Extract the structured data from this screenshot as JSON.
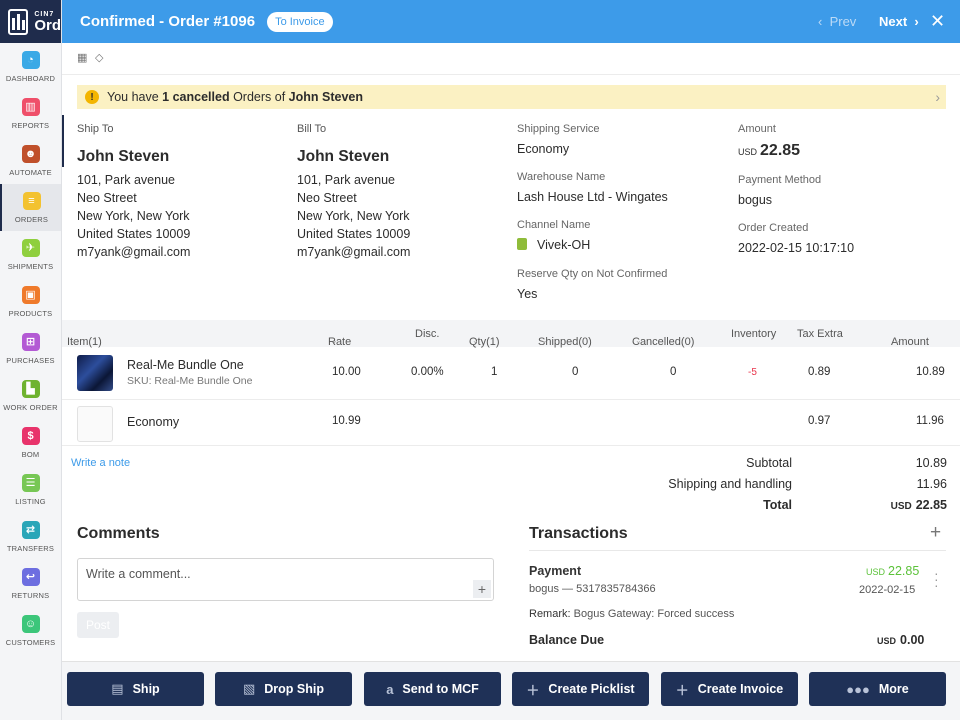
{
  "app": {
    "logo_top": "CIN7",
    "logo_bottom": "Ord"
  },
  "sidebar": {
    "items": [
      {
        "label": "DASHBOARD",
        "icon": "dashboard-icon",
        "color": "#3aa9e6",
        "glyph": "◔"
      },
      {
        "label": "REPORTS",
        "icon": "reports-icon",
        "color": "#ef4f6a",
        "glyph": "▥"
      },
      {
        "label": "AUTOMATE",
        "icon": "robot-icon",
        "color": "#c0502b",
        "glyph": "☻"
      },
      {
        "label": "ORDERS",
        "icon": "orders-icon",
        "color": "#f3c230",
        "glyph": "≡"
      },
      {
        "label": "SHIPMENTS",
        "icon": "plane-icon",
        "color": "#8fcf3e",
        "glyph": "✈"
      },
      {
        "label": "PRODUCTS",
        "icon": "box-icon",
        "color": "#ef7a2b",
        "glyph": "▣"
      },
      {
        "label": "PURCHASES",
        "icon": "cart-icon",
        "color": "#b35ad4",
        "glyph": "⊞"
      },
      {
        "label": "WORK ORDER",
        "icon": "factory-icon",
        "color": "#6fb32f",
        "glyph": "▙"
      },
      {
        "label": "BOM",
        "icon": "bom-icon",
        "color": "#e8336b",
        "glyph": "$"
      },
      {
        "label": "LISTING",
        "icon": "listing-icon",
        "color": "#77c755",
        "glyph": "☰"
      },
      {
        "label": "TRANSFERS",
        "icon": "transfer-icon",
        "color": "#2aa6b8",
        "glyph": "⇄"
      },
      {
        "label": "RETURNS",
        "icon": "return-icon",
        "color": "#6d6ee0",
        "glyph": "↩"
      },
      {
        "label": "CUSTOMERS",
        "icon": "customer-icon",
        "color": "#3cc67a",
        "glyph": "☺"
      }
    ]
  },
  "header": {
    "title": "Confirmed - Order #1096",
    "status_pill": "To Invoice",
    "prev": "Prev",
    "next": "Next"
  },
  "banner": {
    "prefix": "You have",
    "count": "1 cancelled",
    "middle": "Orders of",
    "name": "John Steven"
  },
  "ship_to": {
    "caption": "Ship To",
    "name": "John Steven",
    "line1": "101, Park avenue",
    "line2": "Neo Street",
    "line3": "New York, New York",
    "line4": "United States 10009",
    "email": "m7yank@gmail.com"
  },
  "bill_to": {
    "caption": "Bill To",
    "name": "John Steven",
    "line1": "101, Park avenue",
    "line2": "Neo Street",
    "line3": "New York, New York",
    "line4": "United States 10009",
    "email": "m7yank@gmail.com"
  },
  "details": {
    "shipping_service_label": "Shipping Service",
    "shipping_service": "Economy",
    "warehouse_label": "Warehouse Name",
    "warehouse": "Lash House Ltd - Wingates",
    "channel_label": "Channel Name",
    "channel": "Vivek-OH",
    "reserve_label": "Reserve Qty on Not Confirmed",
    "reserve": "Yes",
    "amount_label": "Amount",
    "amount_currency": "USD",
    "amount": "22.85",
    "payment_method_label": "Payment Method",
    "payment_method": "bogus",
    "order_created_label": "Order Created",
    "order_created": "2022-02-15 10:17:10"
  },
  "table": {
    "headers": {
      "item": "Item(1)",
      "rate": "Rate",
      "disc": "Disc.",
      "qty": "Qty(1)",
      "shipped": "Shipped(0)",
      "cancelled": "Cancelled(0)",
      "inventory": "Inventory",
      "tax": "Tax Extra",
      "amount": "Amount"
    },
    "rows": [
      {
        "name": "Real-Me Bundle One",
        "sku": "SKU: Real-Me Bundle One",
        "rate": "10.00",
        "disc": "0.00%",
        "qty": "1",
        "shipped": "0",
        "cancelled": "0",
        "inventory": "-5",
        "tax": "0.89",
        "amount": "10.89"
      },
      {
        "name": "Economy",
        "rate": "10.99",
        "tax": "0.97",
        "amount": "11.96"
      }
    ],
    "inventory_negative_color": "#e8334a"
  },
  "write_note": "Write a note",
  "totals": {
    "subtotal_label": "Subtotal",
    "subtotal": "10.89",
    "shipping_label": "Shipping and handling",
    "shipping": "11.96",
    "total_label": "Total",
    "total_currency": "USD",
    "total": "22.85"
  },
  "comments": {
    "title": "Comments",
    "placeholder": "Write a comment...",
    "post": "Post"
  },
  "transactions": {
    "title": "Transactions",
    "payment_label": "Payment",
    "payment_detail": "bogus — 5317835784366",
    "payment_currency": "USD",
    "payment_amount": "22.85",
    "payment_date": "2022-02-15",
    "remark_label": "Remark:",
    "remark": "Bogus Gateway: Forced success",
    "balance_label": "Balance Due",
    "balance_currency": "USD",
    "balance": "0.00",
    "payment_color": "#5cc23a"
  },
  "actions": {
    "ship": "Ship",
    "drop_ship": "Drop Ship",
    "send_mcf": "Send to MCF",
    "picklist": "Create Picklist",
    "invoice": "Create Invoice",
    "more": "More"
  }
}
